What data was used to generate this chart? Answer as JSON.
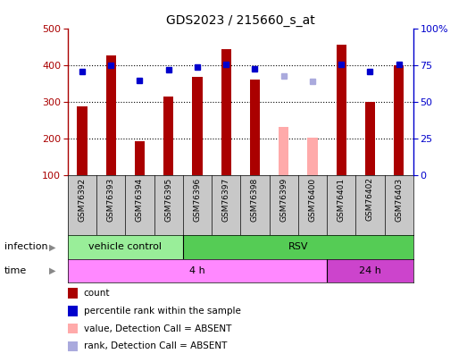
{
  "title": "GDS2023 / 215660_s_at",
  "samples": [
    "GSM76392",
    "GSM76393",
    "GSM76394",
    "GSM76395",
    "GSM76396",
    "GSM76397",
    "GSM76398",
    "GSM76399",
    "GSM76400",
    "GSM76401",
    "GSM76402",
    "GSM76403"
  ],
  "count_values": [
    290,
    428,
    193,
    315,
    370,
    444,
    363,
    null,
    null,
    458,
    300,
    400
  ],
  "count_absent_values": [
    null,
    null,
    null,
    null,
    null,
    null,
    null,
    232,
    204,
    null,
    null,
    null
  ],
  "rank_values": [
    71,
    75,
    65,
    72,
    74,
    76,
    73,
    null,
    null,
    76,
    71,
    76
  ],
  "rank_absent_values": [
    null,
    null,
    null,
    null,
    null,
    null,
    null,
    68,
    64,
    null,
    null,
    null
  ],
  "ylim_left": [
    100,
    500
  ],
  "ylim_right": [
    0,
    100
  ],
  "yticks_left": [
    100,
    200,
    300,
    400,
    500
  ],
  "yticks_right": [
    0,
    25,
    50,
    75,
    100
  ],
  "ytick_labels_right": [
    "0",
    "25",
    "50",
    "75",
    "100%"
  ],
  "bar_color": "#AA0000",
  "bar_absent_color": "#FFAAAA",
  "rank_color": "#0000CC",
  "rank_absent_color": "#AAAADD",
  "axis_color_left": "#AA0000",
  "axis_color_right": "#0000CC",
  "vehicle_color": "#99EE99",
  "rsv_color": "#55CC55",
  "time4_color": "#FF88FF",
  "time24_color": "#CC44CC",
  "infection_spans": [
    {
      "label": "vehicle control",
      "xmin": -0.5,
      "xmax": 3.5,
      "color": "#99EE99"
    },
    {
      "label": "RSV",
      "xmin": 3.5,
      "xmax": 11.5,
      "color": "#55CC55"
    }
  ],
  "time_spans": [
    {
      "label": "4 h",
      "xmin": -0.5,
      "xmax": 8.5,
      "color": "#FF88FF"
    },
    {
      "label": "24 h",
      "xmin": 8.5,
      "xmax": 11.5,
      "color": "#CC44CC"
    }
  ],
  "legend_items": [
    {
      "label": "count",
      "color": "#AA0000"
    },
    {
      "label": "percentile rank within the sample",
      "color": "#0000CC"
    },
    {
      "label": "value, Detection Call = ABSENT",
      "color": "#FFAAAA"
    },
    {
      "label": "rank, Detection Call = ABSENT",
      "color": "#AAAADD"
    }
  ],
  "bar_width": 0.35
}
